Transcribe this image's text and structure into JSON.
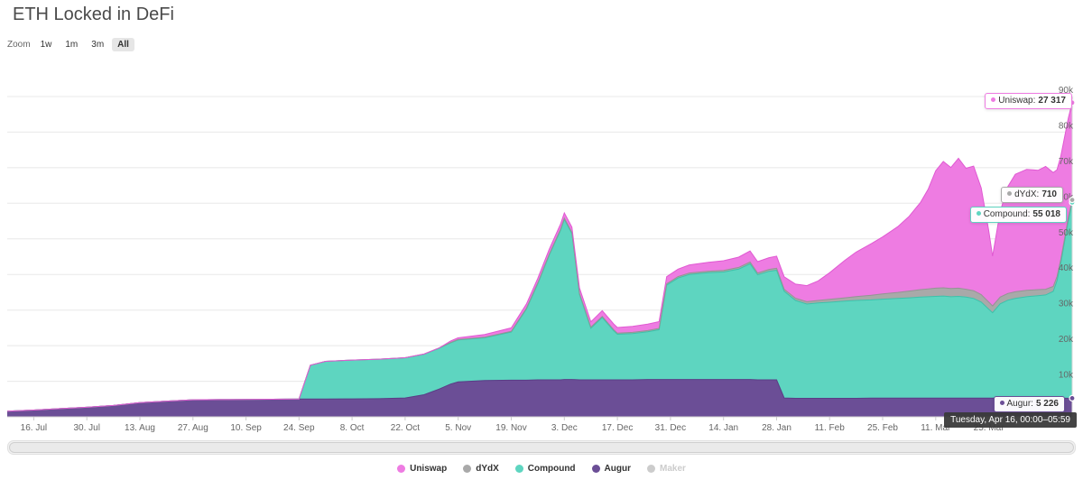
{
  "page": {
    "title": "ETH Locked in DeFi"
  },
  "zoom": {
    "label": "Zoom",
    "options": [
      {
        "label": "1w",
        "selected": false
      },
      {
        "label": "1m",
        "selected": false
      },
      {
        "label": "3m",
        "selected": false
      },
      {
        "label": "All",
        "selected": true
      }
    ]
  },
  "tooltips": {
    "uniswap": {
      "label": "Uniswap:",
      "value": "27 317",
      "color": "#ee7ce2"
    },
    "dydx": {
      "label": "dYdX:",
      "value": "710",
      "color": "#a9a9a9"
    },
    "compound": {
      "label": "Compound:",
      "value": "55 018",
      "color": "#5ed5c0"
    },
    "augur": {
      "label": "Augur:",
      "value": "5 226",
      "color": "#6b4e96"
    },
    "date": {
      "value": "Tuesday, Apr 16, 00:00–05:59"
    }
  },
  "legend": {
    "items": [
      {
        "label": "Uniswap",
        "color": "#ee7ce2",
        "disabled": false
      },
      {
        "label": "dYdX",
        "color": "#a9a9a9",
        "disabled": false
      },
      {
        "label": "Compound",
        "color": "#5ed5c0",
        "disabled": false
      },
      {
        "label": "Augur",
        "color": "#6b4e96",
        "disabled": false
      },
      {
        "label": "Maker",
        "color": "#cccccc",
        "disabled": true
      }
    ]
  },
  "chart_data": {
    "type": "area",
    "stacking": "normal",
    "title": "ETH Locked in DeFi",
    "x_unit": "days since 9 Jul",
    "x": [
      0,
      7,
      14,
      21,
      28,
      35,
      42,
      49,
      56,
      63,
      70,
      77,
      80,
      84,
      91,
      98,
      105,
      110,
      114,
      117,
      119,
      126,
      133,
      137,
      140,
      143,
      146,
      147,
      149,
      151,
      154,
      157,
      160,
      161,
      165,
      169,
      172,
      174,
      177,
      180,
      185,
      189,
      193,
      196,
      198,
      201,
      203,
      205,
      208,
      211,
      214,
      217,
      221,
      224,
      228,
      231,
      235,
      238,
      241,
      243,
      245,
      247,
      249,
      251,
      253,
      255,
      257,
      259,
      260,
      262,
      264,
      266,
      269,
      272,
      274,
      276,
      277,
      278,
      279,
      280,
      281
    ],
    "x_axis": {
      "max": 281,
      "tick_days": [
        7,
        21,
        35,
        49,
        63,
        77,
        91,
        105,
        119,
        133,
        147,
        161,
        175,
        189,
        203,
        217,
        231,
        245,
        259
      ],
      "tick_labels": [
        "16. Jul",
        "30. Jul",
        "13. Aug",
        "27. Aug",
        "10. Sep",
        "24. Sep",
        "8. Oct",
        "22. Oct",
        "5. Nov",
        "19. Nov",
        "3. Dec",
        "17. Dec",
        "31. Dec",
        "14. Jan",
        "28. Jan",
        "11. Feb",
        "25. Feb",
        "11. Mar",
        "25. Mar"
      ]
    },
    "y_axis": {
      "max": 90000,
      "ticks": [
        10000,
        20000,
        30000,
        40000,
        50000,
        60000,
        70000,
        80000,
        90000
      ],
      "labels": [
        "10k",
        "20k",
        "30k",
        "40k",
        "50k",
        "60k",
        "70k",
        "80k",
        "90k"
      ],
      "grid": true,
      "labels_side": "right"
    },
    "series": [
      {
        "name": "Augur",
        "color": "#6b4e96",
        "line_color": "#5a3d86",
        "values": [
          1600,
          1900,
          2300,
          2700,
          3200,
          4000,
          4400,
          4800,
          4850,
          4900,
          4950,
          5000,
          5000,
          5000,
          5050,
          5100,
          5300,
          6200,
          7800,
          9200,
          9800,
          10200,
          10300,
          10300,
          10400,
          10400,
          10400,
          10500,
          10500,
          10400,
          10400,
          10400,
          10400,
          10400,
          10400,
          10500,
          10500,
          10500,
          10500,
          10500,
          10500,
          10500,
          10500,
          10500,
          10400,
          10400,
          10400,
          5300,
          5200,
          5200,
          5200,
          5200,
          5200,
          5200,
          5250,
          5250,
          5250,
          5250,
          5250,
          5250,
          5250,
          5250,
          5250,
          5250,
          5250,
          5250,
          5250,
          5250,
          5250,
          5250,
          5250,
          5250,
          5250,
          5250,
          5250,
          5240,
          5235,
          5230,
          5228,
          5227,
          5226
        ]
      },
      {
        "name": "Compound",
        "color": "#5ed5c0",
        "line_color": "#3cc2ab",
        "values": [
          0,
          0,
          0,
          0,
          0,
          0,
          0,
          0,
          0,
          0,
          0,
          0,
          9500,
          10600,
          10900,
          11100,
          11300,
          11400,
          11500,
          11600,
          11800,
          12000,
          13500,
          20000,
          27000,
          35000,
          42000,
          45000,
          41000,
          24000,
          14500,
          17500,
          13800,
          12800,
          13000,
          13400,
          14000,
          26500,
          28500,
          29500,
          30000,
          30200,
          31000,
          32500,
          29500,
          30500,
          30800,
          30000,
          27500,
          26500,
          26800,
          27000,
          27300,
          27500,
          27600,
          27800,
          28000,
          28200,
          28400,
          28500,
          28600,
          28700,
          28500,
          28600,
          28400,
          28000,
          27000,
          25000,
          24000,
          26500,
          27500,
          28000,
          28500,
          28800,
          29000,
          30000,
          33000,
          38000,
          44000,
          50000,
          55018
        ]
      },
      {
        "name": "dYdX",
        "color": "#a9a9a9",
        "line_color": "#949494",
        "values": [
          0,
          0,
          0,
          0,
          0,
          0,
          0,
          0,
          0,
          0,
          0,
          0,
          0,
          0,
          0,
          0,
          0,
          50,
          80,
          100,
          120,
          150,
          200,
          220,
          250,
          260,
          280,
          300,
          300,
          300,
          300,
          310,
          310,
          310,
          320,
          330,
          350,
          380,
          400,
          400,
          420,
          450,
          480,
          500,
          500,
          520,
          550,
          550,
          600,
          650,
          700,
          800,
          950,
          1100,
          1300,
          1500,
          1700,
          1900,
          2100,
          2200,
          2300,
          2300,
          2300,
          2300,
          2200,
          2200,
          2100,
          2000,
          1900,
          1900,
          1900,
          1900,
          1800,
          1700,
          1600,
          1400,
          1200,
          1000,
          900,
          800,
          710
        ]
      },
      {
        "name": "Uniswap",
        "color": "#ee7ce2",
        "line_color": "#e059d2",
        "values": [
          0,
          0,
          0,
          0,
          0,
          0,
          0,
          0,
          0,
          0,
          0,
          0,
          0,
          0,
          0,
          0,
          0,
          0,
          0,
          400,
          500,
          800,
          1000,
          1200,
          1300,
          1400,
          1500,
          1500,
          1500,
          1500,
          1500,
          1600,
          1600,
          1600,
          1700,
          1800,
          1900,
          2000,
          2100,
          2300,
          2500,
          2700,
          2900,
          3100,
          3200,
          3300,
          3400,
          3500,
          4000,
          4500,
          5500,
          7500,
          10500,
          12500,
          14500,
          16000,
          18500,
          21000,
          24500,
          28000,
          33000,
          35500,
          34000,
          36500,
          34000,
          35000,
          30000,
          20000,
          14000,
          24000,
          30000,
          33000,
          34000,
          33500,
          34500,
          32000,
          30000,
          29000,
          28500,
          28000,
          27317
        ]
      }
    ],
    "disabled_series": [
      {
        "name": "Maker",
        "color": "#cccccc"
      }
    ],
    "legend_position": "bottom-center"
  }
}
